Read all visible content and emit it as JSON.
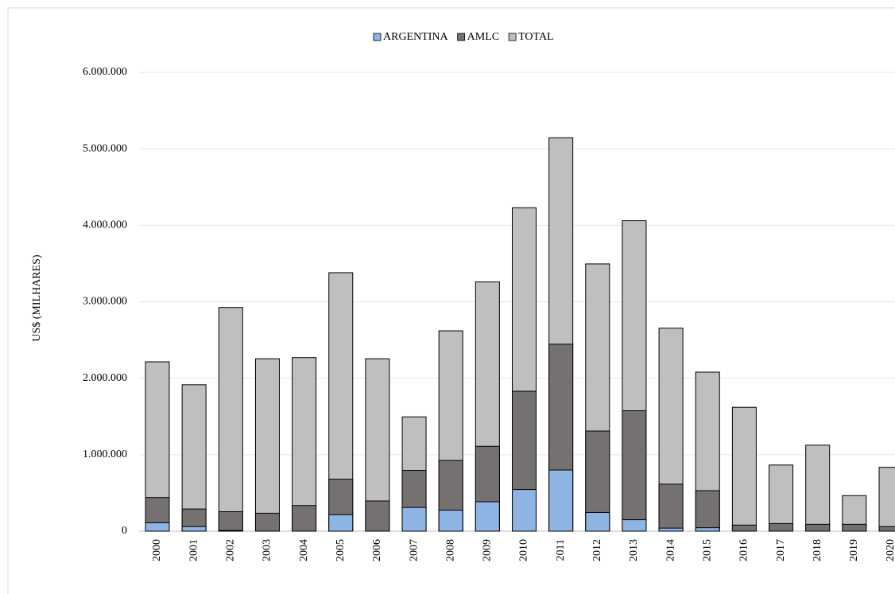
{
  "chart_data": {
    "type": "bar",
    "overlap": true,
    "y_label": "US$ (MILHARES)",
    "categories": [
      "2000",
      "2001",
      "2002",
      "2003",
      "2004",
      "2005",
      "2006",
      "2007",
      "2008",
      "2009",
      "2010",
      "2011",
      "2012",
      "2013",
      "2014",
      "2015",
      "2016",
      "2017",
      "2018",
      "2019",
      "2020"
    ],
    "series": [
      {
        "name": "ARGENTINA",
        "color": "#8db4e2",
        "values": [
          110000,
          60000,
          10000,
          0,
          0,
          215000,
          0,
          310000,
          275000,
          385000,
          545000,
          800000,
          245000,
          150000,
          40000,
          45000,
          0,
          0,
          0,
          0,
          0
        ]
      },
      {
        "name": "AMLC",
        "color": "#767171",
        "values": [
          440000,
          290000,
          255000,
          235000,
          335000,
          680000,
          395000,
          795000,
          925000,
          1110000,
          1830000,
          2445000,
          1310000,
          1575000,
          615000,
          530000,
          80000,
          100000,
          90000,
          90000,
          60000
        ]
      },
      {
        "name": "TOTAL",
        "color": "#bfbfbf",
        "values": [
          2215000,
          1915000,
          2925000,
          2255000,
          2270000,
          3380000,
          2255000,
          1495000,
          2620000,
          3260000,
          4230000,
          5145000,
          3495000,
          4060000,
          2655000,
          2080000,
          1620000,
          865000,
          1125000,
          465000,
          835000
        ]
      }
    ],
    "ylim": [
      0,
      6000000
    ],
    "yticks": [
      0,
      {
        "value": 1000000,
        "label": "1.000.000"
      },
      {
        "value": 2000000,
        "label": "2.000.000"
      },
      {
        "value": 3000000,
        "label": "3.000.000"
      },
      {
        "value": 4000000,
        "label": "4.000.000"
      },
      {
        "value": 5000000,
        "label": "5.000.000"
      },
      {
        "value": 6000000,
        "label": "6.000.000"
      }
    ],
    "grid": true,
    "legend": "top"
  }
}
